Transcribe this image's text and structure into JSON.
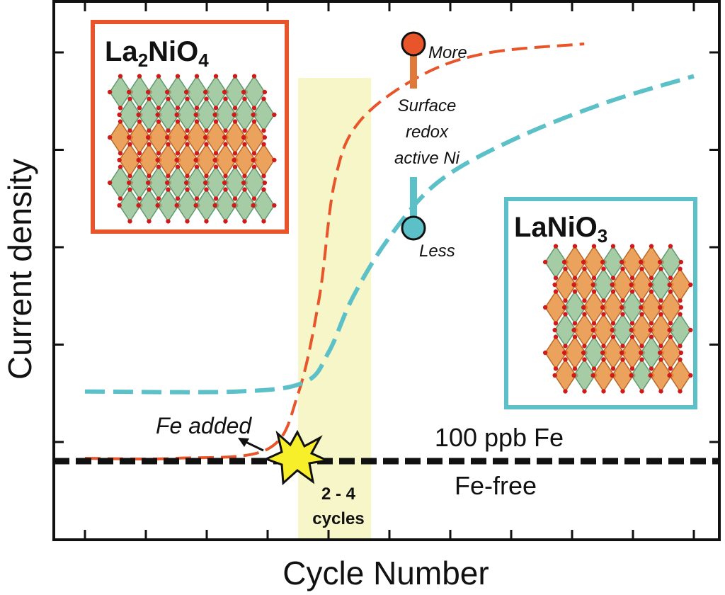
{
  "chart_data": {
    "type": "line",
    "xlabel": "Cycle Number",
    "ylabel": "Current density",
    "grid": false,
    "x_ticks": 10,
    "y_ticks": 6,
    "series": [
      {
        "name": "La2NiO4",
        "color": "#e8552a",
        "points": [
          [
            0,
            0.1
          ],
          [
            1.5,
            0.1
          ],
          [
            3.0,
            0.12
          ],
          [
            3.5,
            0.24
          ],
          [
            3.85,
            0.45
          ],
          [
            4.1,
            0.7
          ],
          [
            4.5,
            0.83
          ],
          [
            5.5,
            0.93
          ],
          [
            6.6,
            0.98
          ],
          [
            8.2,
            1.0
          ]
        ]
      },
      {
        "name": "LaNiO3",
        "color": "#5bc0c8",
        "points": [
          [
            0,
            0.245
          ],
          [
            2.5,
            0.245
          ],
          [
            3.6,
            0.265
          ],
          [
            4.0,
            0.33
          ],
          [
            4.4,
            0.45
          ],
          [
            5.0,
            0.58
          ],
          [
            5.8,
            0.7
          ],
          [
            7.0,
            0.79
          ],
          [
            8.5,
            0.87
          ],
          [
            10.0,
            0.93
          ]
        ]
      }
    ],
    "reference_lines": [
      {
        "label_above": "100 ppb Fe",
        "label_below": "Fe-free",
        "y": 0.25,
        "color": "#111111"
      }
    ],
    "highlight_region": {
      "x_from": 3.5,
      "x_to": 4.7,
      "label_line1": "2 - 4",
      "label_line2": "cycles",
      "color": "#f4f4c0"
    },
    "annotations": {
      "fe_added": "Fe added",
      "surface_label": [
        "Surface",
        "redox",
        "active Ni"
      ],
      "more": "More",
      "less": "Less",
      "more_point": {
        "x": 5.7,
        "y": 0.93
      },
      "less_point": {
        "x": 5.7,
        "y": 0.62
      }
    },
    "insets": [
      {
        "title_base": "La",
        "title_sub1": "2",
        "title_mid": "NiO",
        "title_sub2": "4",
        "border_color": "#e8552a"
      },
      {
        "title_base": "LaNiO",
        "title_sub1": "3",
        "border_color": "#5bc0c8"
      }
    ]
  }
}
